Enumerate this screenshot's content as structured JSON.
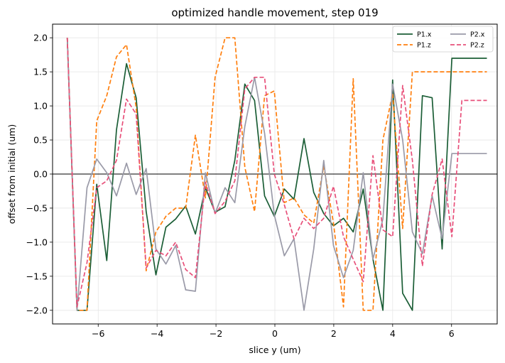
{
  "chart_data": {
    "type": "line",
    "title": "optimized handle movement, step 019",
    "xlabel": "slice y (um)",
    "ylabel": "offset from initial (um)",
    "xlim": [
      -7.55,
      7.55
    ],
    "ylim": [
      -2.2,
      2.2
    ],
    "x_ticks": [
      -6,
      -4,
      -2,
      0,
      2,
      4,
      6
    ],
    "x_tick_labels": [
      "−6",
      "−4",
      "−2",
      "0",
      "2",
      "4",
      "6"
    ],
    "y_ticks": [
      -2.0,
      -1.5,
      -1.0,
      -0.5,
      0.0,
      0.5,
      1.0,
      1.5,
      2.0
    ],
    "y_tick_labels": [
      "−2.0",
      "−1.5",
      "−1.0",
      "−0.5",
      "0.0",
      "0.5",
      "1.0",
      "1.5",
      "2.0"
    ],
    "grid": true,
    "zero_line": true,
    "legend_position": "top-right",
    "x": [
      -7.05,
      -6.72,
      -6.38,
      -6.05,
      -5.71,
      -5.38,
      -5.04,
      -4.71,
      -4.37,
      -4.04,
      -3.7,
      -3.37,
      -3.03,
      -2.7,
      -2.36,
      -2.03,
      -1.69,
      -1.36,
      -1.02,
      -0.69,
      -0.35,
      -0.02,
      0.32,
      0.65,
      0.99,
      1.32,
      1.66,
      1.99,
      2.33,
      2.66,
      3.0,
      3.33,
      3.67,
      4.0,
      4.34,
      4.67,
      5.01,
      5.34,
      5.68,
      6.01,
      6.35,
      6.68,
      7.02,
      7.2
    ],
    "series": [
      {
        "name": "P1.x",
        "color": "#1b5e36",
        "dash": "solid",
        "values": [
          2.0,
          -2.0,
          -2.0,
          -0.15,
          -1.27,
          0.65,
          1.62,
          1.12,
          -0.55,
          -1.48,
          -0.78,
          -0.66,
          -0.47,
          -0.88,
          -0.2,
          -0.56,
          -0.48,
          0.2,
          1.32,
          1.08,
          -0.32,
          -0.62,
          -0.22,
          -0.37,
          0.52,
          -0.27,
          -0.58,
          -0.76,
          -0.65,
          -0.85,
          -0.22,
          -1.25,
          -2.0,
          1.38,
          -1.75,
          -2.0,
          1.15,
          1.12,
          -1.1,
          1.7,
          1.7,
          1.7,
          1.7,
          1.7
        ]
      },
      {
        "name": "P1.z",
        "color": "#ff7f0e",
        "dash": "dashed",
        "values": [
          2.0,
          -2.0,
          -2.0,
          0.78,
          1.15,
          1.72,
          1.9,
          0.98,
          -1.42,
          -0.85,
          -0.62,
          -0.5,
          -0.5,
          0.57,
          -0.35,
          1.42,
          2.0,
          2.0,
          0.1,
          -0.55,
          1.15,
          1.22,
          -0.42,
          -0.35,
          -0.6,
          -0.72,
          0.12,
          -0.72,
          -1.95,
          1.4,
          -2.0,
          -2.0,
          0.5,
          1.18,
          -0.8,
          1.5,
          1.5,
          1.5,
          1.5,
          1.5,
          1.5,
          1.5,
          1.5,
          1.5
        ]
      },
      {
        "name": "P2.x",
        "color": "#9a9aa8",
        "dash": "solid",
        "values": [
          2.0,
          -2.0,
          -0.2,
          0.22,
          0.02,
          -0.32,
          0.16,
          -0.3,
          0.08,
          -1.1,
          -1.32,
          -1.05,
          -1.7,
          -1.72,
          0.02,
          -0.58,
          -0.2,
          -0.42,
          0.7,
          1.42,
          0.6,
          -0.6,
          -1.2,
          -0.95,
          -2.0,
          -1.1,
          0.2,
          -1.05,
          -1.52,
          -1.12,
          0.02,
          -1.25,
          -0.66,
          1.32,
          0.5,
          -0.85,
          -1.17,
          -0.32,
          -0.95,
          0.3,
          0.3,
          0.3,
          0.3,
          0.3
        ]
      },
      {
        "name": "P2.z",
        "color": "#e8507a",
        "dash": "dashed",
        "values": [
          2.0,
          -1.95,
          -1.3,
          -0.2,
          -0.1,
          0.2,
          1.1,
          0.88,
          -1.38,
          -1.12,
          -1.2,
          -1.0,
          -1.4,
          -1.52,
          -0.12,
          -0.58,
          -0.4,
          -0.1,
          1.25,
          1.42,
          1.42,
          0.0,
          -0.45,
          -0.95,
          -0.65,
          -0.8,
          -0.65,
          -0.18,
          -0.92,
          -1.25,
          -1.58,
          0.27,
          -0.82,
          -0.92,
          1.3,
          0.2,
          -1.35,
          -0.3,
          0.22,
          -0.92,
          1.08,
          1.08,
          1.08,
          1.08
        ]
      }
    ]
  }
}
